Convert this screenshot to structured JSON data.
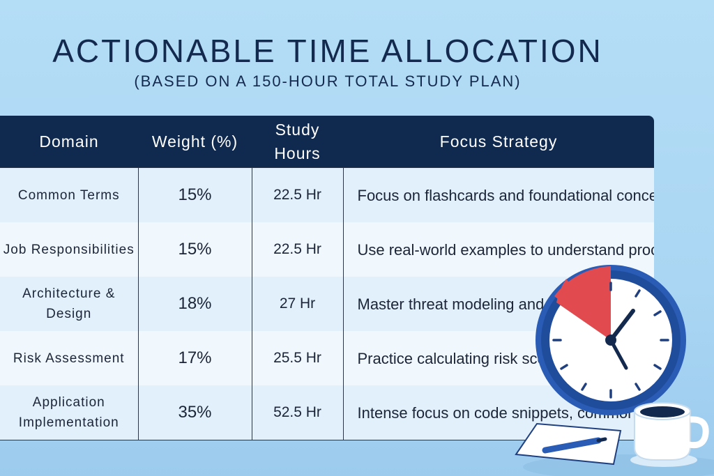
{
  "header": {
    "title": "ACTIONABLE TIME ALLOCATION",
    "subtitle": "(BASED ON A 150-HOUR TOTAL STUDY PLAN)"
  },
  "table": {
    "columns": [
      "Domain",
      "Weight (%)",
      "Study Hours",
      "Focus Strategy"
    ],
    "rows": [
      {
        "domain": "Common Terms",
        "weight": "15%",
        "hours": "22.5 Hr",
        "focus": "Focus on flashcards and foundational concepts."
      },
      {
        "domain": "Job Responsibilities",
        "weight": "15%",
        "hours": "22.5 Hr",
        "focus": "Use real-world examples to understand process flow."
      },
      {
        "domain": "Architecture & Design",
        "weight": "18%",
        "hours": "27 Hr",
        "focus": "Master threat modeling and secure design patterns"
      },
      {
        "domain": "Risk Assessment",
        "weight": "17%",
        "hours": "25.5 Hr",
        "focus": "Practice calculating risk scores and prioritizing fixes"
      },
      {
        "domain": "Application Implementation",
        "weight": "35%",
        "hours": "52.5 Hr",
        "focus": "Intense focus on code snippets, common vulnerabilities"
      }
    ]
  },
  "illustration": {
    "icons": [
      "clock-icon",
      "coffee-cup-icon",
      "notepad-icon",
      "pen-icon"
    ],
    "colors": {
      "clock_ring": "#2757b0",
      "clock_wedge": "#e14b50",
      "header_bg": "#10294f"
    }
  }
}
